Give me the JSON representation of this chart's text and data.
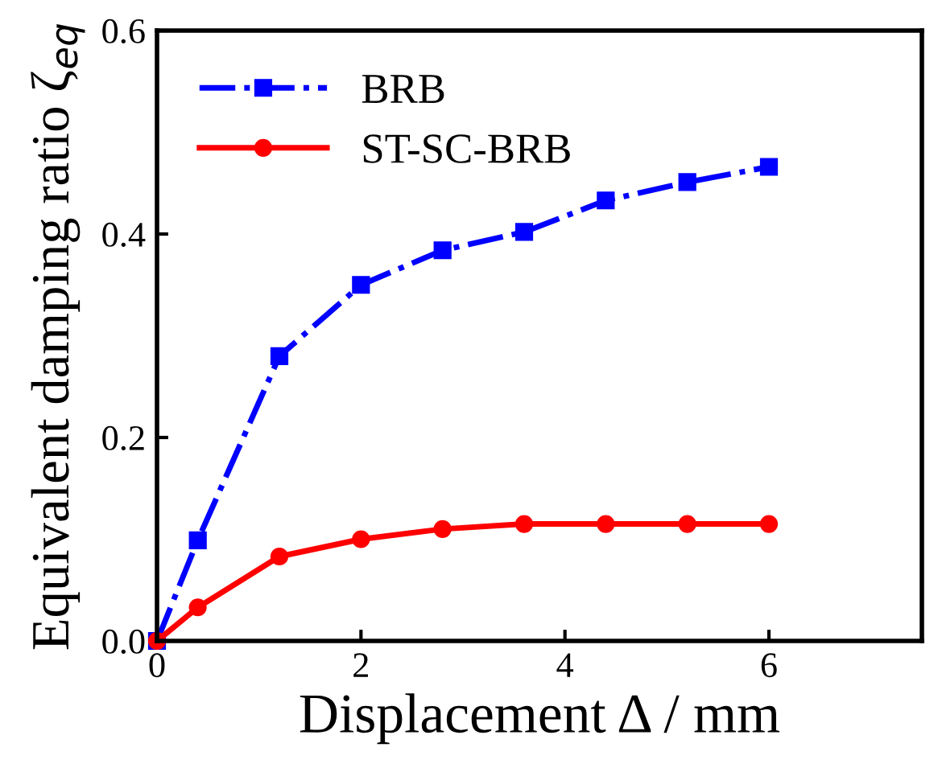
{
  "chart_data": {
    "type": "line",
    "xlabel": "Displacement Δ / mm",
    "ylabel": "Equivalent damping ratio ζ$_{eq}$",
    "x": [
      0,
      0.4,
      1.2,
      2,
      2.8,
      3.6,
      4.4,
      5.2,
      6
    ],
    "series": [
      {
        "name": "BRB",
        "color": "#0000ff",
        "marker": "square",
        "line_style": "dashdot",
        "values": [
          0,
          0.099,
          0.28,
          0.35,
          0.384,
          0.402,
          0.433,
          0.451,
          0.466
        ]
      },
      {
        "name": "ST-SC-BRB",
        "color": "#ff0000",
        "marker": "circle",
        "line_style": "solid",
        "values": [
          0,
          0.033,
          0.083,
          0.1,
          0.11,
          0.115,
          0.115,
          0.115,
          0.115
        ]
      }
    ],
    "xlim": [
      0,
      7.5
    ],
    "ylim": [
      0,
      0.6
    ],
    "xticks": [
      0,
      2,
      4,
      6
    ],
    "yticks": [
      {
        "value": 0,
        "label": "0.0"
      },
      0.2,
      0.4,
      0.6
    ],
    "grid": false,
    "legend": "top left"
  }
}
